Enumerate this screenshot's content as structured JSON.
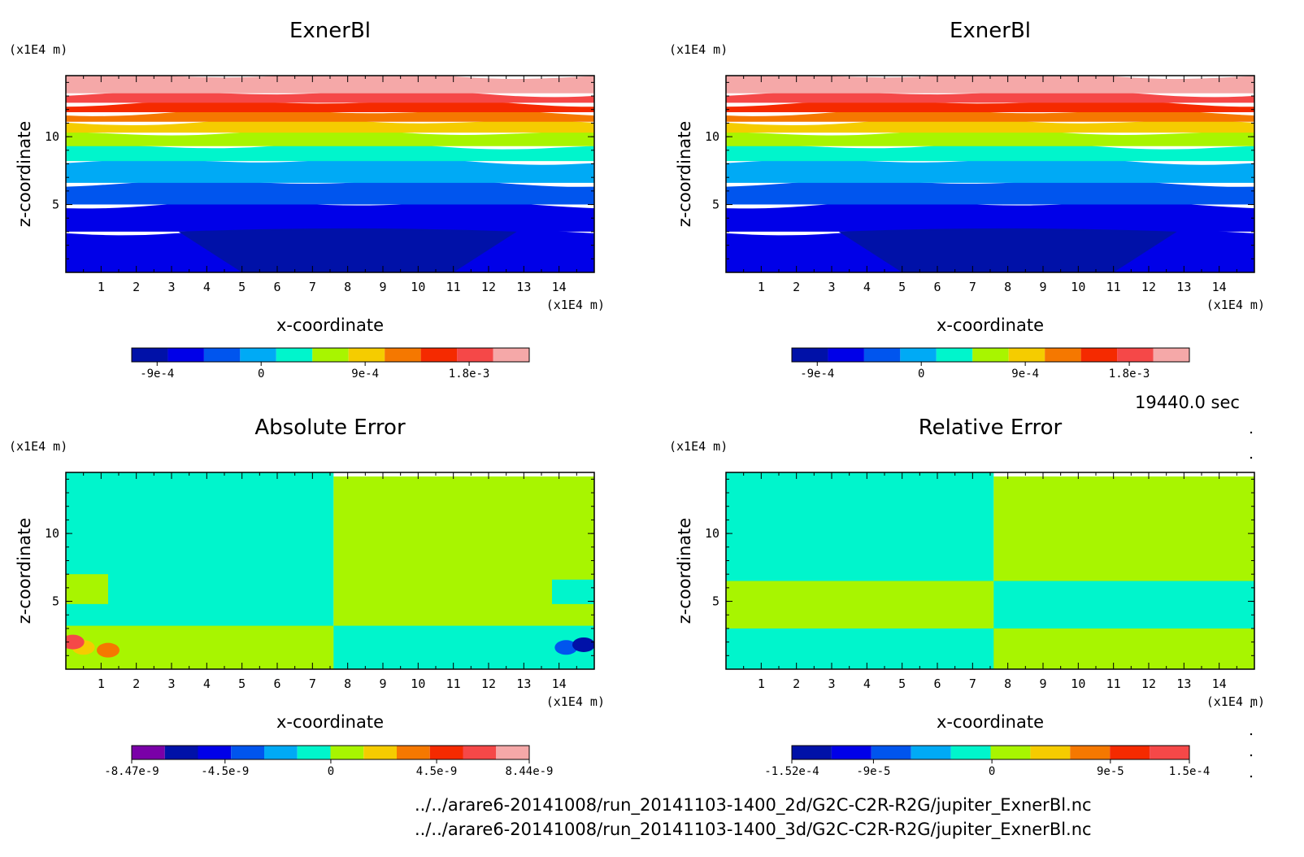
{
  "chart_data": [
    {
      "type": "heatmap",
      "title": "ExnerBl",
      "xlabel": "x-coordinate",
      "ylabel": "z-coordinate",
      "x_unit": "(x1E4 m)",
      "y_unit": "(x1E4 m)",
      "xlim": [
        0,
        15
      ],
      "ylim": [
        0,
        14.5
      ],
      "x_ticks": [
        "1",
        "2",
        "3",
        "4",
        "5",
        "6",
        "7",
        "8",
        "9",
        "10",
        "11",
        "12",
        "13",
        "14"
      ],
      "y_ticks": [
        "5",
        "10"
      ],
      "colorbar": {
        "colors": [
          "#0011a8",
          "#0000e8",
          "#0055ee",
          "#00aaf5",
          "#00f5cc",
          "#a8f500",
          "#f5cc00",
          "#f57800",
          "#f52a00",
          "#f54848",
          "#f5a8a8"
        ],
        "tick_labels": [
          "-9e-4",
          "0",
          "9e-4",
          "1.8e-3"
        ],
        "tick_values": [
          -0.0009,
          0,
          0.0009,
          0.0018
        ],
        "range": [
          -0.00112,
          0.00232
        ]
      },
      "bands": [
        {
          "z": [
            0,
            3.0
          ],
          "level": 1
        },
        {
          "z": [
            3.0,
            5.0
          ],
          "level": 1
        },
        {
          "z": [
            5.0,
            6.6
          ],
          "level": 2
        },
        {
          "z": [
            6.6,
            8.2
          ],
          "level": 3
        },
        {
          "z": [
            8.2,
            9.3
          ],
          "level": 4
        },
        {
          "z": [
            9.3,
            10.3
          ],
          "level": 5
        },
        {
          "z": [
            10.3,
            11.1
          ],
          "level": 6
        },
        {
          "z": [
            11.1,
            11.8
          ],
          "level": 7
        },
        {
          "z": [
            11.8,
            12.5
          ],
          "level": 8
        },
        {
          "z": [
            12.5,
            13.2
          ],
          "level": 9
        },
        {
          "z": [
            13.2,
            14.5
          ],
          "level": 10
        }
      ],
      "blob_level": 0
    },
    {
      "type": "heatmap",
      "title": "ExnerBl",
      "xlabel": "x-coordinate",
      "ylabel": "z-coordinate",
      "x_unit": "(x1E4 m)",
      "y_unit": "(x1E4 m)",
      "xlim": [
        0,
        15
      ],
      "ylim": [
        0,
        14.5
      ],
      "x_ticks": [
        "1",
        "2",
        "3",
        "4",
        "5",
        "6",
        "7",
        "8",
        "9",
        "10",
        "11",
        "12",
        "13",
        "14"
      ],
      "y_ticks": [
        "5",
        "10"
      ],
      "colorbar": {
        "colors": [
          "#0011a8",
          "#0000e8",
          "#0055ee",
          "#00aaf5",
          "#00f5cc",
          "#a8f500",
          "#f5cc00",
          "#f57800",
          "#f52a00",
          "#f54848",
          "#f5a8a8"
        ],
        "tick_labels": [
          "-9e-4",
          "0",
          "9e-4",
          "1.8e-3"
        ],
        "tick_values": [
          -0.0009,
          0,
          0.0009,
          0.0018
        ],
        "range": [
          -0.00112,
          0.00232
        ]
      },
      "bands": [
        {
          "z": [
            0,
            3.0
          ],
          "level": 1
        },
        {
          "z": [
            3.0,
            5.0
          ],
          "level": 1
        },
        {
          "z": [
            5.0,
            6.6
          ],
          "level": 2
        },
        {
          "z": [
            6.6,
            8.2
          ],
          "level": 3
        },
        {
          "z": [
            8.2,
            9.3
          ],
          "level": 4
        },
        {
          "z": [
            9.3,
            10.3
          ],
          "level": 5
        },
        {
          "z": [
            10.3,
            11.1
          ],
          "level": 6
        },
        {
          "z": [
            11.1,
            11.8
          ],
          "level": 7
        },
        {
          "z": [
            11.8,
            12.5
          ],
          "level": 8
        },
        {
          "z": [
            12.5,
            13.2
          ],
          "level": 9
        },
        {
          "z": [
            13.2,
            14.5
          ],
          "level": 10
        }
      ],
      "blob_level": 0
    },
    {
      "type": "heatmap",
      "title": "Absolute Error",
      "xlabel": "x-coordinate",
      "ylabel": "z-coordinate",
      "x_unit": "(x1E4 m)",
      "y_unit": "(x1E4 m)",
      "xlim": [
        0,
        15
      ],
      "ylim": [
        0,
        14.5
      ],
      "x_ticks": [
        "1",
        "2",
        "3",
        "4",
        "5",
        "6",
        "7",
        "8",
        "9",
        "10",
        "11",
        "12",
        "13",
        "14"
      ],
      "y_ticks": [
        "5",
        "10"
      ],
      "colorbar": {
        "colors": [
          "#7a00a8",
          "#0011a8",
          "#0000e8",
          "#0055ee",
          "#00aaf5",
          "#00f5cc",
          "#a8f500",
          "#f5cc00",
          "#f57800",
          "#f52a00",
          "#f54848",
          "#f5a8a8"
        ],
        "tick_labels": [
          "-8.47e-9",
          "-4.5e-9",
          "0",
          "4.5e-9",
          "8.44e-9"
        ],
        "tick_values": [
          -8.47e-09,
          -4.5e-09,
          0,
          4.5e-09,
          8.44e-09
        ],
        "range": [
          -8.47e-09,
          8.44e-09
        ]
      },
      "regions": [
        {
          "x": [
            0,
            7.6
          ],
          "z": [
            0,
            14.5
          ],
          "level": 5
        },
        {
          "x": [
            7.6,
            15
          ],
          "z": [
            0,
            14.2
          ],
          "level": 6
        },
        {
          "x": [
            0,
            7.6
          ],
          "z": [
            0,
            3.2
          ],
          "level": 6
        },
        {
          "x": [
            7.6,
            15
          ],
          "z": [
            0,
            3.2
          ],
          "level": 5
        },
        {
          "x": [
            0,
            1.2
          ],
          "z": [
            4.8,
            7.0
          ],
          "level": 6
        },
        {
          "x": [
            13.8,
            15
          ],
          "z": [
            4.8,
            6.6
          ],
          "level": 5
        }
      ],
      "spots": [
        {
          "x": 0.5,
          "z": 1.6,
          "level": 7
        },
        {
          "x": 1.2,
          "z": 1.4,
          "level": 8
        },
        {
          "x": 0.2,
          "z": 2.0,
          "level": 10
        },
        {
          "x": 14.2,
          "z": 1.6,
          "level": 3
        },
        {
          "x": 14.7,
          "z": 1.8,
          "level": 1
        }
      ]
    },
    {
      "type": "heatmap",
      "title": "Relative Error",
      "xlabel": "x-coordinate",
      "ylabel": "z-coordinate",
      "x_unit": "(x1E4 m)",
      "y_unit": "(x1E4 m)",
      "xlim": [
        0,
        15
      ],
      "ylim": [
        0,
        14.5
      ],
      "x_ticks": [
        "1",
        "2",
        "3",
        "4",
        "5",
        "6",
        "7",
        "8",
        "9",
        "10",
        "11",
        "12",
        "13",
        "14"
      ],
      "y_ticks": [
        "5",
        "10"
      ],
      "colorbar": {
        "colors": [
          "#0011a8",
          "#0000e8",
          "#0055ee",
          "#00aaf5",
          "#00f5cc",
          "#a8f500",
          "#f5cc00",
          "#f57800",
          "#f52a00",
          "#f54848"
        ],
        "tick_labels": [
          "-1.52e-4",
          "-9e-5",
          "0",
          "9e-5",
          "1.5e-4"
        ],
        "tick_values": [
          -0.000152,
          -9e-05,
          0,
          9e-05,
          0.00015
        ],
        "range": [
          -0.000152,
          0.00015
        ]
      },
      "regions": [
        {
          "x": [
            0,
            7.6
          ],
          "z": [
            0,
            14.5
          ],
          "level": 4
        },
        {
          "x": [
            7.6,
            15
          ],
          "z": [
            0,
            14.2
          ],
          "level": 5
        },
        {
          "x": [
            0,
            7.6
          ],
          "z": [
            0,
            6.5
          ],
          "level": 5
        },
        {
          "x": [
            7.6,
            15
          ],
          "z": [
            0,
            6.5
          ],
          "level": 4
        },
        {
          "x": [
            0,
            7.6
          ],
          "z": [
            0,
            3.0
          ],
          "level": 4
        },
        {
          "x": [
            7.6,
            15
          ],
          "z": [
            0,
            3.0
          ],
          "level": 5
        }
      ],
      "spots": []
    }
  ],
  "timestamp": "19440.0 sec",
  "files": [
    "../../arare6-20141008/run_20141103-1400_2d/G2C-C2R-R2G/jupiter_ExnerBl.nc",
    "../../arare6-20141008/run_20141103-1400_3d/G2C-C2R-R2G/jupiter_ExnerBl.nc"
  ]
}
